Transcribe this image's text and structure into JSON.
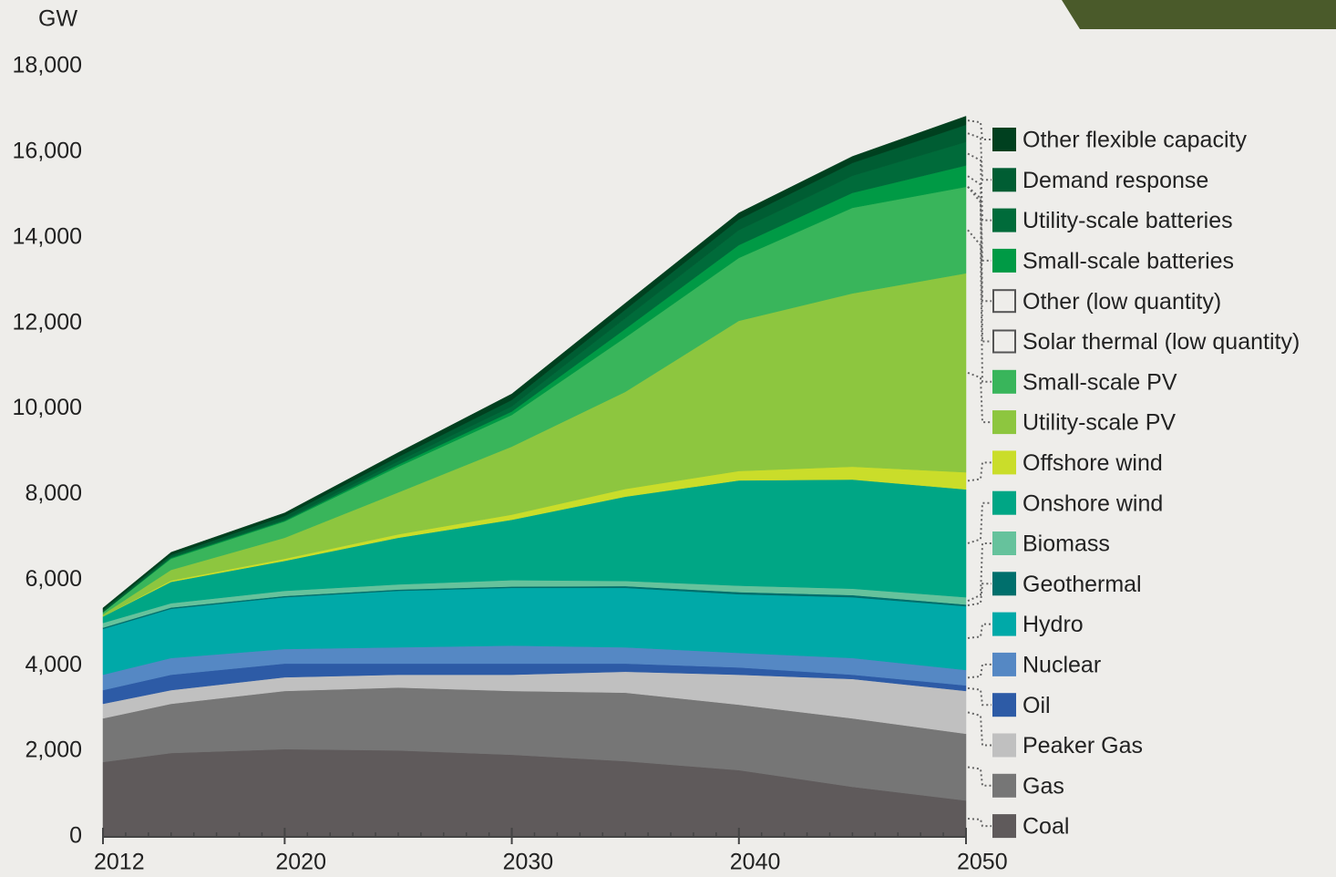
{
  "chart_data": {
    "type": "stacked_area",
    "y_label": "GW",
    "x": [
      2012,
      2015,
      2020,
      2025,
      2030,
      2035,
      2040,
      2045,
      2050
    ],
    "xlim": [
      2012,
      2050
    ],
    "xticks": [
      2012,
      2020,
      2030,
      2040,
      2050
    ],
    "ylim": [
      0,
      18000
    ],
    "yticks": [
      0,
      {
        "value": 2000,
        "label": "2,000"
      },
      {
        "value": 4000,
        "label": "4,000"
      },
      {
        "value": 6000,
        "label": "6,000"
      },
      {
        "value": 8000,
        "label": "8,000"
      },
      {
        "value": 10000,
        "label": "10,000"
      },
      {
        "value": 12000,
        "label": "12,000"
      },
      {
        "value": 14000,
        "label": "14,000"
      },
      {
        "value": 16000,
        "label": "16,000"
      },
      {
        "value": 18000,
        "label": "18,000"
      }
    ],
    "grid": false,
    "legend": "right",
    "series": [
      {
        "name": "Coal",
        "color": "#5f5a5b",
        "values": [
          1750,
          1960,
          2050,
          2020,
          1920,
          1770,
          1560,
          1170,
          850
        ]
      },
      {
        "name": "Gas",
        "color": "#767676",
        "values": [
          1020,
          1150,
          1360,
          1470,
          1490,
          1600,
          1530,
          1600,
          1560
        ]
      },
      {
        "name": "Peaker Gas",
        "color": "#c0c0c0",
        "values": [
          340,
          320,
          320,
          300,
          380,
          490,
          700,
          920,
          1000
        ]
      },
      {
        "name": "Oil",
        "color": "#2d5ba6",
        "values": [
          320,
          360,
          320,
          260,
          260,
          190,
          170,
          100,
          130
        ]
      },
      {
        "name": "Nuclear",
        "color": "#5588c4",
        "values": [
          360,
          390,
          340,
          380,
          420,
          380,
          340,
          390,
          360
        ]
      },
      {
        "name": "Hydro",
        "color": "#00a9a8",
        "values": [
          1070,
          1150,
          1210,
          1320,
          1350,
          1390,
          1370,
          1420,
          1490
        ]
      },
      {
        "name": "Geothermal",
        "color": "#006f6c",
        "values": [
          30,
          30,
          30,
          30,
          30,
          40,
          50,
          50,
          40
        ]
      },
      {
        "name": "Biomass",
        "color": "#66c29c",
        "values": [
          110,
          100,
          120,
          120,
          150,
          120,
          150,
          150,
          170
        ]
      },
      {
        "name": "Onshore wind",
        "color": "#00a685",
        "values": [
          150,
          500,
          700,
          1090,
          1410,
          1970,
          2460,
          2550,
          2520
        ]
      },
      {
        "name": "Offshore wind",
        "color": "#cadd2a",
        "values": [
          0,
          30,
          50,
          80,
          120,
          180,
          220,
          300,
          400
        ]
      },
      {
        "name": "Utility-scale PV",
        "color": "#8dc63f",
        "values": [
          50,
          250,
          490,
          980,
          1590,
          2270,
          3510,
          4050,
          4650
        ]
      },
      {
        "name": "Small-scale PV",
        "color": "#39b55b",
        "values": [
          50,
          260,
          380,
          600,
          740,
          1270,
          1470,
          2000,
          2020
        ]
      },
      {
        "name": "Solar thermal (low quantity)",
        "color": "none",
        "values": [
          0,
          0,
          0,
          0,
          0,
          0,
          0,
          0,
          0
        ]
      },
      {
        "name": "Other (low quantity)",
        "color": "none",
        "values": [
          0,
          0,
          0,
          0,
          0,
          0,
          0,
          0,
          0
        ]
      },
      {
        "name": "Small-scale batteries",
        "color": "#009a45",
        "values": [
          0,
          20,
          20,
          50,
          80,
          200,
          300,
          350,
          500
        ]
      },
      {
        "name": "Utility-scale batteries",
        "color": "#006b3a",
        "values": [
          0,
          20,
          30,
          80,
          120,
          250,
          350,
          400,
          550
        ]
      },
      {
        "name": "Demand response",
        "color": "#005d33",
        "values": [
          50,
          50,
          80,
          100,
          150,
          200,
          250,
          300,
          400
        ]
      },
      {
        "name": "Other flexible capacity",
        "color": "#00401f",
        "values": [
          50,
          60,
          70,
          100,
          140,
          150,
          150,
          150,
          200
        ]
      }
    ]
  }
}
